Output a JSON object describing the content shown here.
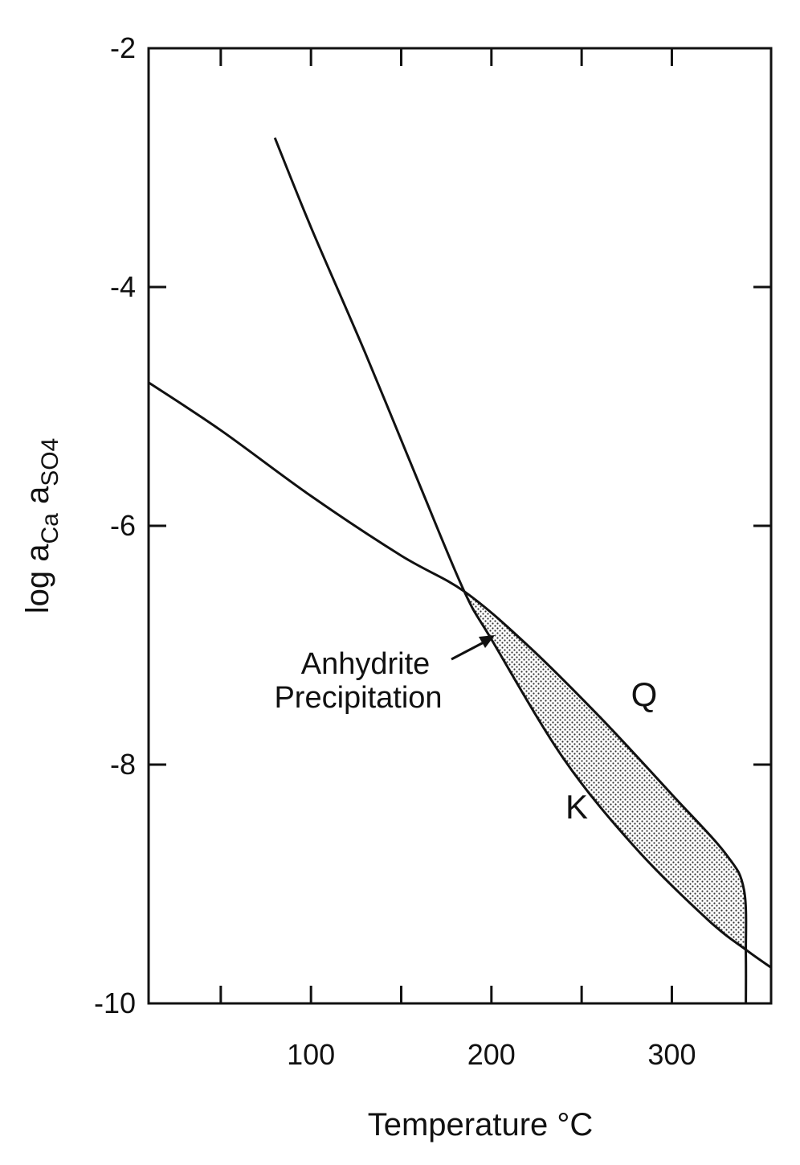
{
  "chart_data": {
    "type": "line",
    "title": "",
    "xlabel": "Temperature °C",
    "ylabel": "log a_Ca a_SO4",
    "xlim": [
      10,
      355
    ],
    "ylim": [
      -10,
      -2
    ],
    "x_ticks": [
      {
        "value": 100,
        "label": "100"
      },
      {
        "value": 200,
        "label": "200"
      },
      {
        "value": 300,
        "label": "300"
      }
    ],
    "x_minor_ticks": [
      50,
      150,
      250
    ],
    "y_ticks": [
      {
        "value": -2,
        "label": "-2"
      },
      {
        "value": -4,
        "label": "-4"
      },
      {
        "value": -6,
        "label": "-6"
      },
      {
        "value": -8,
        "label": "-8"
      },
      {
        "value": -10,
        "label": "-10"
      }
    ],
    "grid": false,
    "series": [
      {
        "name": "Q",
        "x": [
          10,
          50,
          100,
          150,
          185,
          220,
          260,
          300,
          330,
          340,
          341,
          341
        ],
        "y": [
          -4.8,
          -5.2,
          -5.75,
          -6.25,
          -6.55,
          -7.0,
          -7.6,
          -8.25,
          -8.75,
          -9.05,
          -9.6,
          -10.0
        ]
      },
      {
        "name": "K",
        "x": [
          80,
          100,
          130,
          160,
          185,
          200,
          240,
          280,
          320,
          341,
          355
        ],
        "y": [
          -2.75,
          -3.5,
          -4.55,
          -5.65,
          -6.55,
          -6.95,
          -7.95,
          -8.7,
          -9.3,
          -9.55,
          -9.7
        ]
      }
    ],
    "annotations": [
      {
        "text": "Anhydrite",
        "x": 173,
        "y": -7.3
      },
      {
        "text": "Precipitation",
        "x": 173,
        "y": -7.6
      },
      {
        "text": "Q",
        "x": 276,
        "y": -7.65
      },
      {
        "text": "K",
        "x": 244,
        "y": -8.6
      }
    ]
  }
}
